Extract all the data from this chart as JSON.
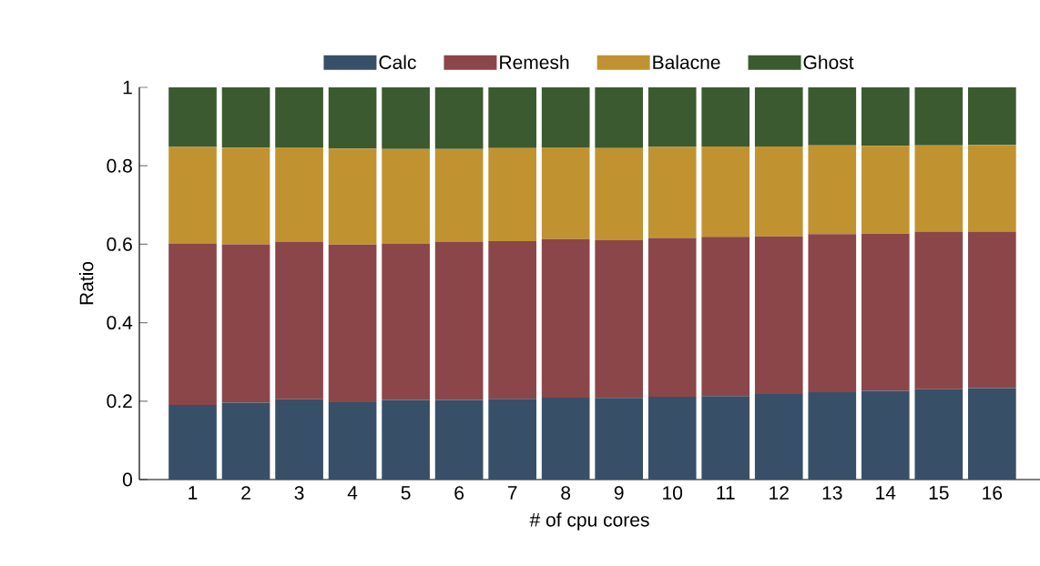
{
  "chart_data": {
    "type": "bar",
    "stacked": true,
    "xlabel": "# of cpu cores",
    "ylabel": "Ratio",
    "categories": [
      "1",
      "2",
      "3",
      "4",
      "5",
      "6",
      "7",
      "8",
      "9",
      "10",
      "11",
      "12",
      "13",
      "14",
      "15",
      "16"
    ],
    "series": [
      {
        "name": "Calc",
        "color": "#384f68",
        "values": [
          0.19,
          0.196,
          0.205,
          0.197,
          0.203,
          0.203,
          0.206,
          0.209,
          0.208,
          0.211,
          0.213,
          0.218,
          0.223,
          0.226,
          0.23,
          0.233
        ]
      },
      {
        "name": "Remesh",
        "color": "#8b464a",
        "values": [
          0.412,
          0.404,
          0.402,
          0.402,
          0.398,
          0.404,
          0.402,
          0.404,
          0.402,
          0.405,
          0.406,
          0.402,
          0.403,
          0.401,
          0.402,
          0.399
        ]
      },
      {
        "name": "Balacne",
        "color": "#c09330",
        "values": [
          0.246,
          0.246,
          0.24,
          0.245,
          0.242,
          0.236,
          0.237,
          0.234,
          0.235,
          0.232,
          0.23,
          0.229,
          0.226,
          0.224,
          0.22,
          0.221
        ]
      },
      {
        "name": "Ghost",
        "color": "#3b5a30",
        "values": [
          0.152,
          0.154,
          0.153,
          0.156,
          0.157,
          0.157,
          0.155,
          0.153,
          0.155,
          0.152,
          0.151,
          0.151,
          0.148,
          0.149,
          0.148,
          0.147
        ]
      }
    ],
    "ylim": [
      0,
      1
    ],
    "yticks": [
      0,
      0.2,
      0.4,
      0.6,
      0.8,
      1
    ],
    "grid": false,
    "legend": "top"
  }
}
